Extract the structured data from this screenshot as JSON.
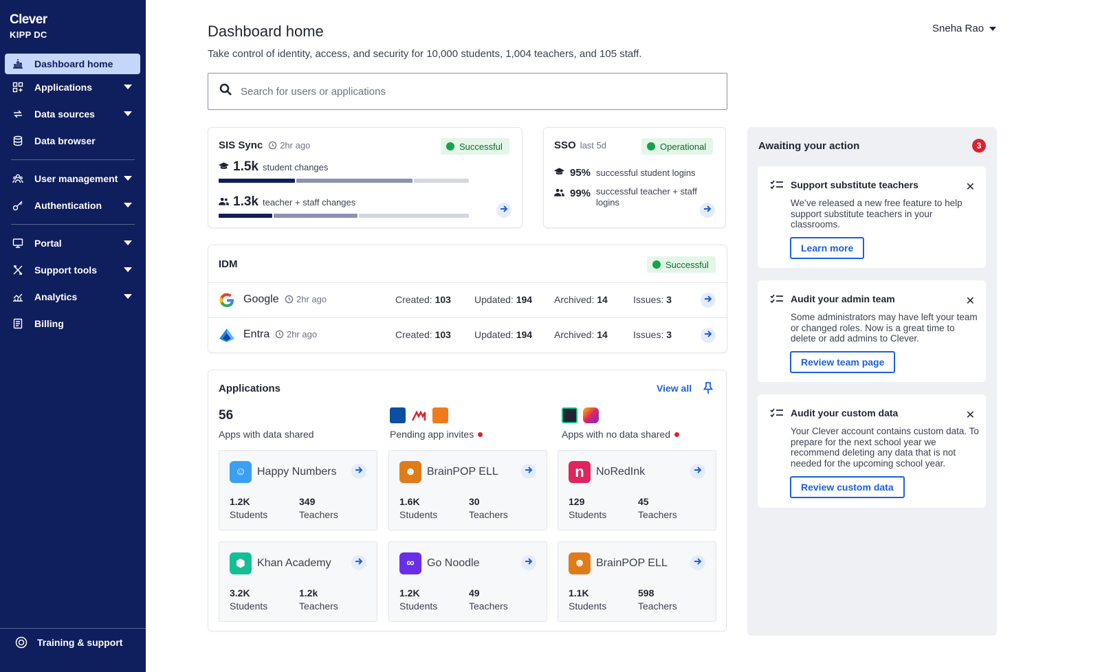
{
  "app": {
    "logo": "Clever",
    "org": "KIPP DC"
  },
  "sidebar": {
    "items": [
      {
        "label": "Dashboard home",
        "icon": "dashboard-icon"
      },
      {
        "label": "Applications",
        "icon": "applications-icon"
      },
      {
        "label": "Data sources",
        "icon": "sync-icon"
      },
      {
        "label": "Data browser",
        "icon": "database-icon"
      },
      {
        "label": "User management",
        "icon": "users-icon"
      },
      {
        "label": "Authentication",
        "icon": "key-icon"
      },
      {
        "label": "Portal",
        "icon": "monitor-icon"
      },
      {
        "label": "Support tools",
        "icon": "tools-icon"
      },
      {
        "label": "Analytics",
        "icon": "analytics-icon"
      },
      {
        "label": "Billing",
        "icon": "billing-icon"
      }
    ],
    "footer": "Training & support"
  },
  "header": {
    "title": "Dashboard home",
    "subtitle": "Take control of identity, access, and security for 10,000 students, 1,004 teachers, and 105 staff.",
    "user": "Sneha Rao"
  },
  "search": {
    "placeholder": "Search for users or applications"
  },
  "sis": {
    "title": "SIS Sync",
    "time": "2hr ago",
    "status": "Successful",
    "student_value": "1.5k",
    "student_label": "student changes",
    "staff_value": "1.3k",
    "staff_label": "teacher + staff changes",
    "student_split": [
      0.31,
      0.47,
      0.22
    ],
    "staff_split": [
      0.22,
      0.34,
      0.44
    ]
  },
  "sso": {
    "title": "SSO",
    "period": "last 5d",
    "status": "Operational",
    "student_pct": "95%",
    "student_label": "successful student logins",
    "teacher_pct": "99%",
    "teacher_label": "successful teacher + staff logins"
  },
  "idm": {
    "title": "IDM",
    "status": "Successful",
    "created_label": "Created:",
    "updated_label": "Updated:",
    "archived_label": "Archived:",
    "issues_label": "Issues:",
    "rows": [
      {
        "name": "Google",
        "time": "2hr ago",
        "created": "103",
        "updated": "194",
        "archived": "14",
        "issues": "3"
      },
      {
        "name": "Entra",
        "time": "2hr ago",
        "created": "103",
        "updated": "194",
        "archived": "14",
        "issues": "3"
      }
    ]
  },
  "applications": {
    "title": "Applications",
    "view_all": "View all",
    "shared_count": "56",
    "shared_label": "Apps with data shared",
    "pending_label": "Pending app invites",
    "no_data_label": "Apps with no data shared",
    "students_label": "Students",
    "teachers_label": "Teachers",
    "tiles": [
      {
        "name": "Happy Numbers",
        "students": "1.2K",
        "teachers": "349",
        "color": "#3aa0f2"
      },
      {
        "name": "BrainPOP ELL",
        "students": "1.6K",
        "teachers": "30",
        "color": "#e07b1a"
      },
      {
        "name": "NoRedInk",
        "students": "129",
        "teachers": "45",
        "color": "#e0245e"
      },
      {
        "name": "Khan Academy",
        "students": "3.2K",
        "teachers": "1.2k",
        "color": "#14bf96"
      },
      {
        "name": "Go Noodle",
        "students": "1.2K",
        "teachers": "49",
        "color": "#6a2ee8"
      },
      {
        "name": "BrainPOP ELL",
        "students": "1.1K",
        "teachers": "598",
        "color": "#e07b1a"
      }
    ]
  },
  "actions": {
    "title": "Awaiting your action",
    "count": "3",
    "items": [
      {
        "title": "Support substitute teachers",
        "body": "We’ve released a new free feature to help support substitute teachers in your classrooms.",
        "button": "Learn more"
      },
      {
        "title": "Audit your admin team",
        "body": "Some administrators may have left your team or changed roles. Now is a great time to delete or add admins to Clever.",
        "button": "Review team page"
      },
      {
        "title": "Audit your custom data",
        "body": "Your Clever account contains custom data. To prepare for the next school year we recommend deleting any data that is not needed for the upcoming school year.",
        "button": "Review custom data"
      }
    ]
  },
  "colors": {
    "sidebar": "#0f1e5c",
    "accent": "#1a5fe0",
    "success": "#17a34a",
    "alert": "#d9232f"
  }
}
